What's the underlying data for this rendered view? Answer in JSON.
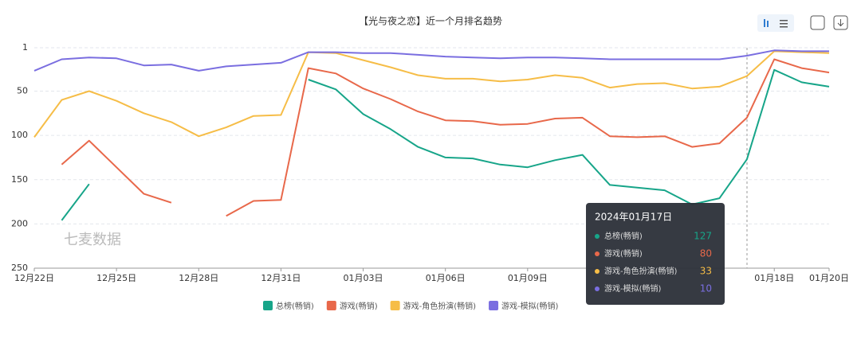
{
  "chart_data": {
    "type": "line",
    "title": "【光与夜之恋】近一个月排名趋势",
    "categories": [
      "12月22日",
      null,
      null,
      "12月25日",
      null,
      null,
      "12月28日",
      null,
      null,
      "12月31日",
      null,
      null,
      "01月03日",
      null,
      null,
      "01月06日",
      null,
      null,
      "01月09日",
      null,
      null,
      null,
      null,
      null,
      null,
      null,
      null,
      "01月18日",
      null,
      "01月20日"
    ],
    "ylim": [
      1,
      250
    ],
    "yticks": [
      1,
      50,
      100,
      150,
      200,
      250
    ],
    "y_inverted": true,
    "grid": true,
    "series": [
      {
        "name": "总榜(畅销)",
        "color": "#17a589",
        "values": [
          null,
          196,
          155,
          null,
          null,
          null,
          null,
          null,
          null,
          null,
          37,
          48,
          76,
          93,
          113,
          125,
          126,
          133,
          136,
          128,
          122,
          156,
          159,
          162,
          178,
          171,
          127,
          26,
          40,
          45
        ]
      },
      {
        "name": "游戏(畅销)",
        "color": "#e8684a",
        "values": [
          null,
          133,
          106,
          136,
          166,
          176,
          null,
          191,
          174,
          173,
          24,
          30,
          47,
          59,
          73,
          83,
          84,
          88,
          87,
          81,
          80,
          101,
          102,
          101,
          113,
          109,
          80,
          14,
          24,
          29
        ]
      },
      {
        "name": "游戏-角色扮演(畅销)",
        "color": "#f6bd47",
        "values": [
          102,
          60,
          50,
          61,
          75,
          85,
          101,
          91,
          78,
          77,
          6,
          7,
          15,
          23,
          32,
          36,
          36,
          39,
          37,
          32,
          35,
          46,
          42,
          41,
          47,
          45,
          33,
          5,
          6,
          7
        ]
      },
      {
        "name": "游戏-模拟(畅销)",
        "color": "#7a6ee0",
        "values": [
          27,
          14,
          12,
          13,
          21,
          20,
          27,
          22,
          20,
          18,
          6,
          6,
          7,
          7,
          9,
          11,
          12,
          13,
          12,
          12,
          13,
          14,
          14,
          14,
          14,
          14,
          10,
          4,
          5,
          5
        ]
      }
    ],
    "annotations": [
      "七麦数据"
    ],
    "tooltip": {
      "title": "2024年01月17日"
    }
  }
}
